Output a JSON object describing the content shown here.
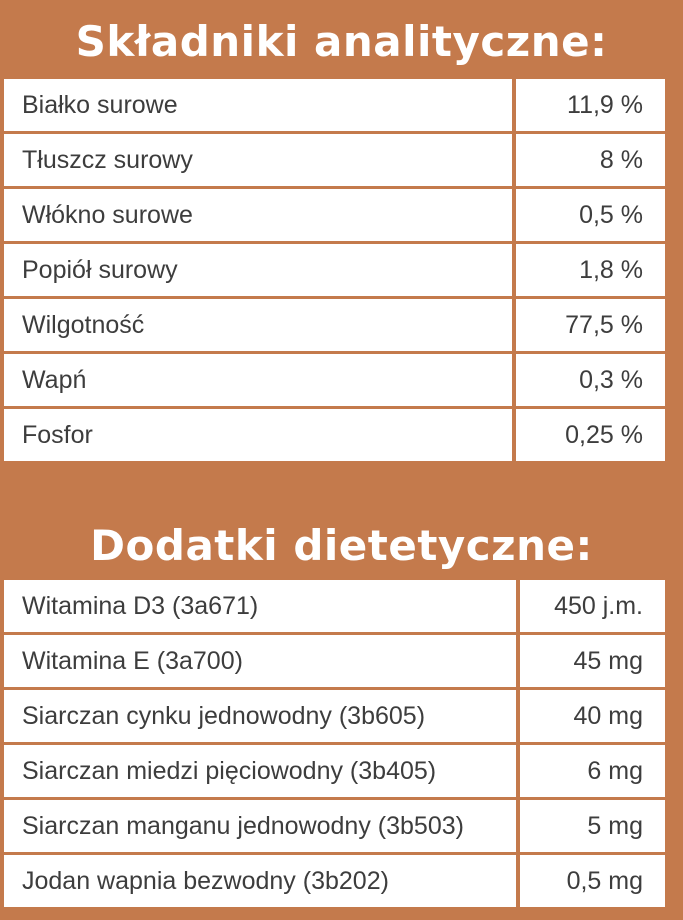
{
  "analytical": {
    "title": "Składniki analityczne:",
    "rows": [
      {
        "label": "Białko surowe",
        "value": "11,9 %"
      },
      {
        "label": "Tłuszcz surowy",
        "value": "8 %"
      },
      {
        "label": "Włókno surowe",
        "value": "0,5 %"
      },
      {
        "label": "Popiół surowy",
        "value": "1,8 %"
      },
      {
        "label": "Wilgotność",
        "value": "77,5 %"
      },
      {
        "label": "Wapń",
        "value": "0,3 %"
      },
      {
        "label": "Fosfor",
        "value": "0,25 %"
      }
    ]
  },
  "additives": {
    "title": "Dodatki dietetyczne:",
    "rows": [
      {
        "label": "Witamina D3 (3a671)",
        "value": "450 j.m."
      },
      {
        "label": "Witamina E (3a700)",
        "value": "45 mg"
      },
      {
        "label": "Siarczan  cynku jednowodny (3b605)",
        "value": "40 mg"
      },
      {
        "label": "Siarczan  miedzi pięciowodny (3b405)",
        "value": "6 mg"
      },
      {
        "label": "Siarczan  manganu jednowodny (3b503)",
        "value": "5 mg"
      },
      {
        "label": "Jodan wapnia bezwodny (3b202)",
        "value": "0,5 mg"
      }
    ]
  }
}
